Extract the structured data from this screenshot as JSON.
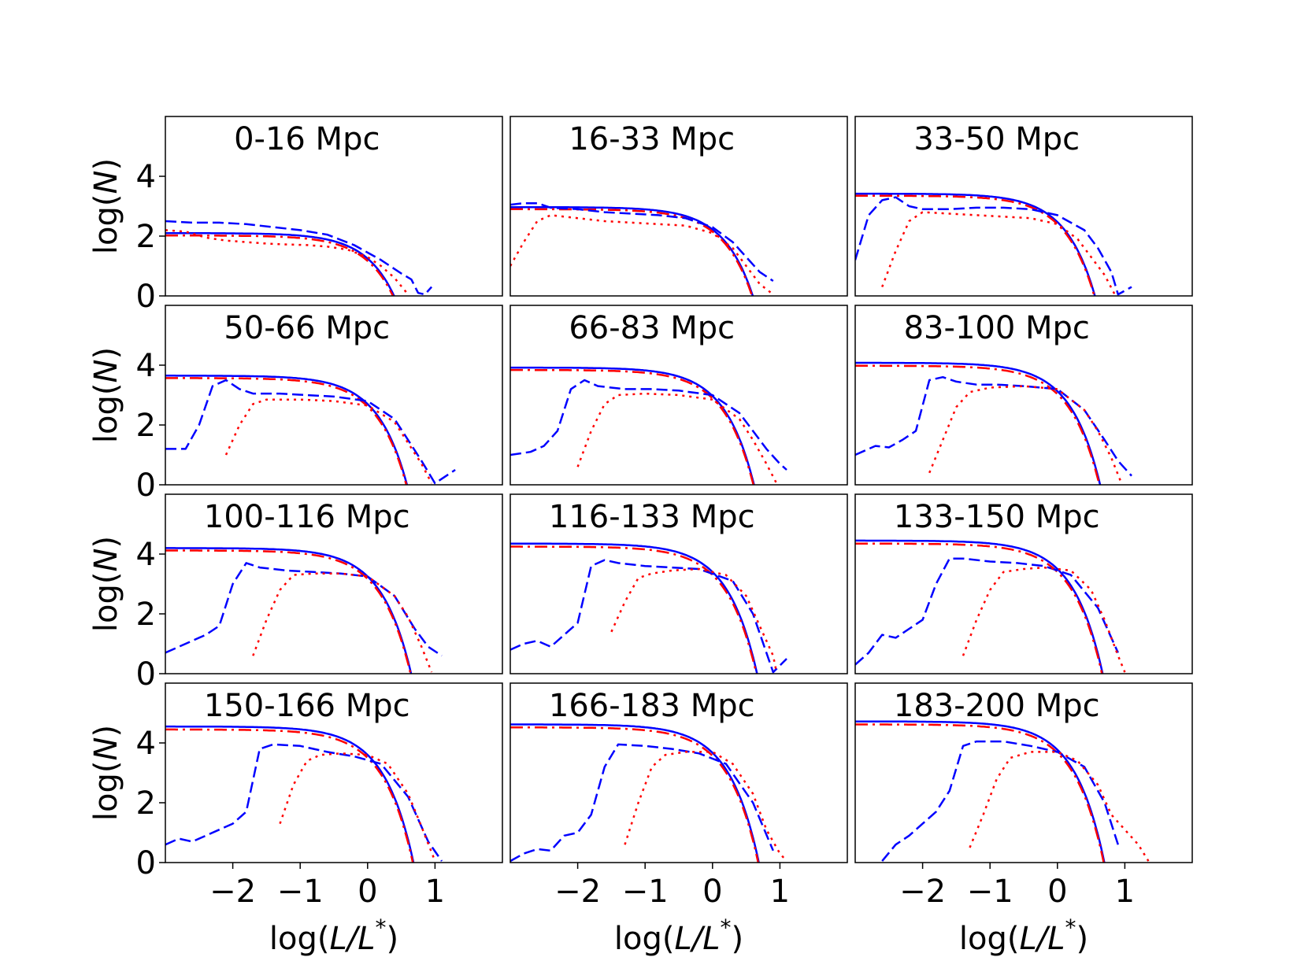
{
  "chart_data": {
    "type": "line",
    "layout": "4x3 grid of panels",
    "xlabel_prefix": "log(",
    "xlabel_italic": "L/L",
    "xlabel_superscript": "*",
    "xlabel_suffix": ")",
    "ylabel_prefix": "log(",
    "ylabel_italic": "N",
    "ylabel_suffix": ")",
    "xlim": [
      -3,
      2
    ],
    "ylim": [
      0,
      6
    ],
    "xticks": [
      -2,
      -1,
      0,
      1
    ],
    "xtick_labels": [
      "−2",
      "−1",
      "0",
      "1"
    ],
    "yticks": [
      0,
      2,
      4
    ],
    "ytick_labels": [
      "0",
      "2",
      "4"
    ],
    "colors": {
      "blue": "#0000ff",
      "red": "#ff0000"
    },
    "series_styles": [
      {
        "key": "model_blue",
        "color": "#0000ff",
        "style": "solid"
      },
      {
        "key": "model_red",
        "color": "#ff0000",
        "style": "dashdot"
      },
      {
        "key": "data_blue",
        "color": "#0000ff",
        "style": "dashed"
      },
      {
        "key": "data_red",
        "color": "#ff0000",
        "style": "dotted"
      }
    ],
    "panels": [
      {
        "title": "0-16 Mpc",
        "model_blue": {
          "A": 2.1,
          "b": 0.85
        },
        "model_red": {
          "A": 2.02,
          "b": 0.85
        },
        "data_blue": {
          "x": [
            -3,
            -2.6,
            -2.2,
            -1.8,
            -1.4,
            -1.0,
            -0.6,
            -0.2,
            0.2,
            0.5,
            0.65,
            0.75,
            0.85,
            0.95
          ],
          "y": [
            2.5,
            2.45,
            2.45,
            2.4,
            2.3,
            2.2,
            2.05,
            1.7,
            1.2,
            0.75,
            0.55,
            0.1,
            0.05,
            0.3
          ]
        },
        "data_red": {
          "x": [
            -3,
            -2.7,
            -2.4,
            -2.1,
            -1.8,
            -1.5,
            -1.2,
            -0.9,
            -0.6,
            -0.3,
            0.0,
            0.2,
            0.4,
            0.6
          ],
          "y": [
            2.2,
            2.15,
            1.95,
            1.85,
            1.8,
            1.75,
            1.72,
            1.7,
            1.65,
            1.55,
            1.3,
            1.0,
            0.6,
            0.05
          ]
        }
      },
      {
        "title": "16-33 Mpc",
        "model_blue": {
          "A": 2.97,
          "b": 0.75
        },
        "model_red": {
          "A": 2.9,
          "b": 0.75
        },
        "data_blue": {
          "x": [
            -3,
            -2.8,
            -2.6,
            -2.4,
            -2.0,
            -1.6,
            -1.2,
            -0.8,
            -0.4,
            0.0,
            0.3,
            0.5,
            0.7,
            0.9
          ],
          "y": [
            3.05,
            3.1,
            3.1,
            2.95,
            2.9,
            2.8,
            2.75,
            2.7,
            2.6,
            2.3,
            1.8,
            1.3,
            0.8,
            0.5
          ]
        },
        "data_red": {
          "x": [
            -3,
            -2.8,
            -2.6,
            -2.4,
            -2.0,
            -1.6,
            -1.2,
            -0.8,
            -0.4,
            0.0,
            0.3,
            0.5,
            0.7,
            0.9
          ],
          "y": [
            1.0,
            1.8,
            2.5,
            2.7,
            2.6,
            2.5,
            2.45,
            2.4,
            2.35,
            2.1,
            1.6,
            1.0,
            0.4,
            0.05
          ]
        }
      },
      {
        "title": "33-50 Mpc",
        "model_blue": {
          "A": 3.42,
          "b": 0.95
        },
        "model_red": {
          "A": 3.35,
          "b": 0.95
        },
        "data_blue": {
          "x": [
            -3,
            -2.8,
            -2.6,
            -2.4,
            -2.2,
            -2.0,
            -1.6,
            -1.2,
            -0.8,
            -0.4,
            0.0,
            0.4,
            0.6,
            0.8,
            0.9,
            1.1
          ],
          "y": [
            1.2,
            2.7,
            3.2,
            3.3,
            3.0,
            2.9,
            2.9,
            2.95,
            2.95,
            2.9,
            2.7,
            2.2,
            1.6,
            0.8,
            0.05,
            0.3
          ]
        },
        "data_red": {
          "x": [
            -2.6,
            -2.4,
            -2.2,
            -2.0,
            -1.6,
            -1.2,
            -0.8,
            -0.4,
            0.0,
            0.3,
            0.5,
            0.7,
            0.85
          ],
          "y": [
            0.3,
            1.5,
            2.5,
            2.8,
            2.75,
            2.7,
            2.65,
            2.6,
            2.4,
            1.9,
            1.3,
            0.7,
            0.05
          ]
        }
      },
      {
        "title": "50-66 Mpc",
        "model_blue": {
          "A": 3.65,
          "b": 0.95
        },
        "model_red": {
          "A": 3.57,
          "b": 0.95
        },
        "data_blue": {
          "x": [
            -3,
            -2.7,
            -2.5,
            -2.3,
            -2.1,
            -1.9,
            -1.7,
            -1.3,
            -0.9,
            -0.5,
            0.0,
            0.4,
            0.6,
            0.8,
            1.0,
            1.3
          ],
          "y": [
            1.2,
            1.2,
            2.0,
            3.3,
            3.5,
            3.2,
            3.05,
            3.05,
            3.0,
            2.95,
            2.8,
            2.2,
            1.5,
            0.8,
            0.05,
            0.5
          ]
        },
        "data_red": {
          "x": [
            -2.1,
            -1.9,
            -1.7,
            -1.5,
            -1.0,
            -0.5,
            0.0,
            0.4,
            0.6,
            0.8,
            0.95
          ],
          "y": [
            1.0,
            2.0,
            2.7,
            2.85,
            2.85,
            2.8,
            2.65,
            2.1,
            1.4,
            0.7,
            0.05
          ]
        }
      },
      {
        "title": "66-83 Mpc",
        "model_blue": {
          "A": 3.92,
          "b": 0.95
        },
        "model_red": {
          "A": 3.84,
          "b": 0.95
        },
        "data_blue": {
          "x": [
            -3,
            -2.7,
            -2.5,
            -2.3,
            -2.1,
            -1.9,
            -1.7,
            -1.3,
            -0.9,
            -0.5,
            0.0,
            0.4,
            0.6,
            0.8,
            1.0,
            1.1
          ],
          "y": [
            1.0,
            1.1,
            1.3,
            1.8,
            3.2,
            3.5,
            3.3,
            3.2,
            3.2,
            3.15,
            3.0,
            2.4,
            1.8,
            1.2,
            0.7,
            0.5
          ]
        },
        "data_red": {
          "x": [
            -2.0,
            -1.8,
            -1.6,
            -1.4,
            -1.0,
            -0.5,
            0.0,
            0.4,
            0.6,
            0.8,
            0.95
          ],
          "y": [
            0.6,
            1.8,
            2.7,
            3.0,
            3.05,
            3.0,
            2.85,
            2.2,
            1.5,
            0.7,
            0.05
          ]
        }
      },
      {
        "title": "83-100 Mpc",
        "model_blue": {
          "A": 4.08,
          "b": 0.95
        },
        "model_red": {
          "A": 3.98,
          "b": 0.95
        },
        "data_blue": {
          "x": [
            -3,
            -2.7,
            -2.5,
            -2.3,
            -2.1,
            -1.9,
            -1.7,
            -1.5,
            -1.2,
            -0.9,
            -0.5,
            0.0,
            0.4,
            0.7,
            0.9,
            1.1
          ],
          "y": [
            1.0,
            1.3,
            1.25,
            1.5,
            1.8,
            3.5,
            3.6,
            3.45,
            3.35,
            3.35,
            3.3,
            3.2,
            2.5,
            1.5,
            0.8,
            0.3
          ]
        },
        "data_red": {
          "x": [
            -1.9,
            -1.7,
            -1.5,
            -1.3,
            -1.0,
            -0.5,
            0.0,
            0.4,
            0.6,
            0.8,
            0.95
          ],
          "y": [
            0.4,
            1.5,
            2.6,
            3.1,
            3.25,
            3.3,
            3.2,
            2.5,
            1.8,
            0.9,
            0.05
          ]
        }
      },
      {
        "title": "100-116 Mpc",
        "model_blue": {
          "A": 4.2,
          "b": 0.95
        },
        "model_red": {
          "A": 4.12,
          "b": 0.95
        },
        "data_blue": {
          "x": [
            -3,
            -2.8,
            -2.6,
            -2.4,
            -2.2,
            -2.0,
            -1.8,
            -1.6,
            -1.2,
            -0.8,
            -0.4,
            0.0,
            0.4,
            0.7,
            0.9,
            1.1
          ],
          "y": [
            0.7,
            0.9,
            1.1,
            1.3,
            1.6,
            3.0,
            3.7,
            3.55,
            3.45,
            3.4,
            3.35,
            3.25,
            2.6,
            1.5,
            0.9,
            0.6
          ]
        },
        "data_red": {
          "x": [
            -1.7,
            -1.5,
            -1.3,
            -1.1,
            -0.8,
            -0.4,
            0.0,
            0.4,
            0.6,
            0.8,
            0.95
          ],
          "y": [
            0.6,
            1.8,
            2.8,
            3.3,
            3.35,
            3.35,
            3.25,
            2.6,
            1.9,
            0.9,
            0.05
          ]
        }
      },
      {
        "title": "116-133 Mpc",
        "model_blue": {
          "A": 4.35,
          "b": 0.95
        },
        "model_red": {
          "A": 4.25,
          "b": 0.95
        },
        "data_blue": {
          "x": [
            -3,
            -2.8,
            -2.6,
            -2.4,
            -2.2,
            -2.0,
            -1.8,
            -1.6,
            -1.4,
            -1.0,
            -0.6,
            -0.2,
            0.3,
            0.6,
            0.9,
            1.1
          ],
          "y": [
            0.8,
            1.0,
            1.1,
            0.9,
            1.3,
            1.7,
            3.6,
            3.8,
            3.7,
            3.6,
            3.55,
            3.5,
            3.1,
            2.0,
            0.05,
            0.5
          ]
        },
        "data_red": {
          "x": [
            -1.5,
            -1.3,
            -1.1,
            -0.9,
            -0.6,
            -0.2,
            0.2,
            0.5,
            0.7,
            0.9,
            0.95
          ],
          "y": [
            1.4,
            2.4,
            3.2,
            3.35,
            3.45,
            3.5,
            3.3,
            2.6,
            1.6,
            0.6,
            0.05
          ]
        }
      },
      {
        "title": "133-150 Mpc",
        "model_blue": {
          "A": 4.45,
          "b": 0.95
        },
        "model_red": {
          "A": 4.35,
          "b": 0.95
        },
        "data_blue": {
          "x": [
            -3,
            -2.8,
            -2.6,
            -2.4,
            -2.2,
            -2.0,
            -1.8,
            -1.6,
            -1.4,
            -1.0,
            -0.6,
            -0.2,
            0.2,
            0.6,
            0.9
          ],
          "y": [
            0.3,
            0.7,
            1.3,
            1.2,
            1.5,
            1.8,
            3.0,
            3.85,
            3.85,
            3.75,
            3.7,
            3.6,
            3.3,
            2.2,
            0.7
          ]
        },
        "data_red": {
          "x": [
            -1.4,
            -1.2,
            -1.0,
            -0.8,
            -0.5,
            -0.2,
            0.2,
            0.5,
            0.7,
            0.9,
            1.0
          ],
          "y": [
            0.6,
            1.8,
            2.8,
            3.4,
            3.5,
            3.55,
            3.45,
            2.8,
            1.8,
            0.6,
            0.05
          ]
        }
      },
      {
        "title": "150-166 Mpc",
        "model_blue": {
          "A": 4.55,
          "b": 0.95
        },
        "model_red": {
          "A": 4.45,
          "b": 0.95
        },
        "data_blue": {
          "x": [
            -3,
            -2.8,
            -2.6,
            -2.4,
            -2.2,
            -2.0,
            -1.8,
            -1.6,
            -1.4,
            -1.0,
            -0.6,
            -0.2,
            0.2,
            0.6,
            0.9,
            1.1
          ],
          "y": [
            0.6,
            0.8,
            0.7,
            0.9,
            1.1,
            1.3,
            1.7,
            3.8,
            3.95,
            3.9,
            3.7,
            3.55,
            3.3,
            2.2,
            0.7,
            0.05
          ]
        },
        "data_red": {
          "x": [
            -1.3,
            -1.1,
            -0.9,
            -0.7,
            -0.4,
            0.0,
            0.3,
            0.6,
            0.8,
            1.0
          ],
          "y": [
            1.3,
            2.6,
            3.4,
            3.6,
            3.65,
            3.6,
            3.3,
            2.3,
            1.2,
            0.05
          ]
        }
      },
      {
        "title": "166-183 Mpc",
        "model_blue": {
          "A": 4.62,
          "b": 0.95
        },
        "model_red": {
          "A": 4.52,
          "b": 0.95
        },
        "data_blue": {
          "x": [
            -3,
            -2.8,
            -2.6,
            -2.4,
            -2.2,
            -2.0,
            -1.8,
            -1.6,
            -1.4,
            -1.0,
            -0.6,
            -0.2,
            0.2,
            0.6,
            0.9
          ],
          "y": [
            0.05,
            0.3,
            0.45,
            0.4,
            0.9,
            1.0,
            1.6,
            3.2,
            3.95,
            3.9,
            3.8,
            3.65,
            3.3,
            2.0,
            0.4
          ]
        },
        "data_red": {
          "x": [
            -1.3,
            -1.1,
            -0.9,
            -0.7,
            -0.4,
            0.0,
            0.3,
            0.6,
            0.8,
            1.0,
            1.1
          ],
          "y": [
            0.6,
            2.0,
            3.2,
            3.6,
            3.7,
            3.7,
            3.3,
            2.3,
            1.1,
            0.3,
            0.05
          ]
        }
      },
      {
        "title": "183-200 Mpc",
        "model_blue": {
          "A": 4.72,
          "b": 0.95
        },
        "model_red": {
          "A": 4.62,
          "b": 0.95
        },
        "data_blue": {
          "x": [
            -2.6,
            -2.4,
            -2.2,
            -2.0,
            -1.8,
            -1.6,
            -1.4,
            -1.2,
            -0.8,
            -0.4,
            0.0,
            0.4,
            0.7,
            0.9
          ],
          "y": [
            0.05,
            0.6,
            0.9,
            1.3,
            1.7,
            2.4,
            3.9,
            4.05,
            4.05,
            3.9,
            3.7,
            3.2,
            2.0,
            0.6
          ]
        },
        "data_red": {
          "x": [
            -1.3,
            -1.1,
            -0.9,
            -0.7,
            -0.4,
            0.0,
            0.3,
            0.6,
            0.8,
            1.0,
            1.2,
            1.35
          ],
          "y": [
            0.5,
            1.6,
            2.8,
            3.5,
            3.7,
            3.7,
            3.4,
            2.6,
            1.6,
            1.1,
            0.6,
            0.05
          ]
        }
      }
    ]
  }
}
